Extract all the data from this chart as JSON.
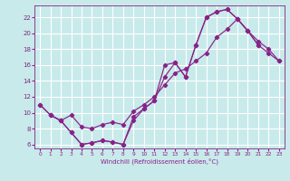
{
  "xlabel": "Windchill (Refroidissement éolien,°C)",
  "bg_color": "#c8eaea",
  "grid_color": "#ffffff",
  "line_color": "#882288",
  "xlim": [
    -0.5,
    23.5
  ],
  "ylim": [
    5.5,
    23.5
  ],
  "xticks": [
    0,
    1,
    2,
    3,
    4,
    5,
    6,
    7,
    8,
    9,
    10,
    11,
    12,
    13,
    14,
    15,
    16,
    17,
    18,
    19,
    20,
    21,
    22,
    23
  ],
  "yticks": [
    6,
    8,
    10,
    12,
    14,
    16,
    18,
    20,
    22
  ],
  "curve1_x": [
    0,
    1,
    2,
    3,
    4,
    5,
    6,
    7,
    8,
    9,
    10,
    11,
    12,
    13,
    14,
    15,
    16,
    17,
    18,
    19,
    20,
    21
  ],
  "curve1_y": [
    11.0,
    9.7,
    9.0,
    7.5,
    6.0,
    6.2,
    6.5,
    6.3,
    6.0,
    9.0,
    10.5,
    11.5,
    16.0,
    16.3,
    14.5,
    18.5,
    22.0,
    22.7,
    23.0,
    21.8,
    20.3,
    18.5
  ],
  "curve2_x": [
    0,
    1,
    2,
    3,
    4,
    5,
    6,
    7,
    8,
    9,
    10,
    11,
    12,
    13,
    14,
    15,
    16,
    17,
    18,
    19,
    20,
    21,
    22,
    23
  ],
  "curve2_y": [
    11.0,
    9.7,
    9.0,
    7.5,
    6.0,
    6.2,
    6.5,
    6.3,
    6.0,
    9.5,
    10.5,
    11.5,
    14.5,
    16.3,
    14.5,
    18.5,
    22.0,
    22.7,
    23.0,
    21.8,
    20.3,
    18.5,
    17.5,
    16.5
  ],
  "curve3_x": [
    1,
    2,
    3,
    4,
    5,
    6,
    7,
    8,
    9,
    10,
    11,
    12,
    13,
    14,
    15,
    16,
    17,
    18,
    19,
    20,
    21,
    22,
    23
  ],
  "curve3_y": [
    9.7,
    9.0,
    9.7,
    8.2,
    8.0,
    8.5,
    8.8,
    8.5,
    10.2,
    11.0,
    12.0,
    13.5,
    15.0,
    15.5,
    16.5,
    17.5,
    19.5,
    20.5,
    21.8,
    20.3,
    19.0,
    18.0,
    16.5
  ]
}
